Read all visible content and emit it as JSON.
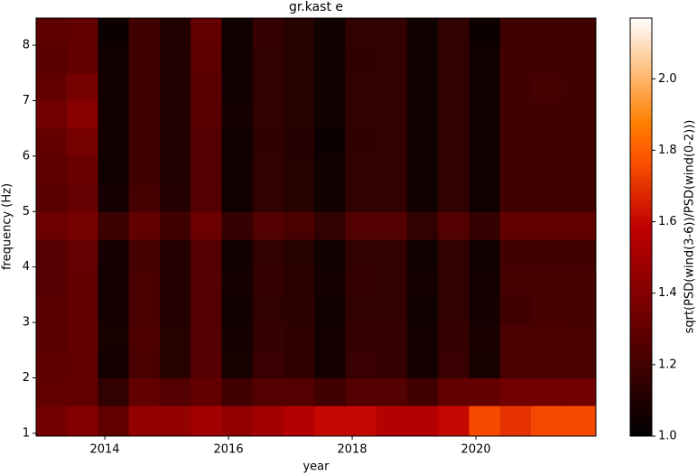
{
  "chart_data": {
    "type": "heatmap",
    "title": "gr.kast e",
    "x_label": "year",
    "y_label": "frequency (Hz)",
    "colorbar_label": "sqrt(PSD(wind(3-6))/PSD(wind(0-2)))",
    "colormap": "gist_heat",
    "clim": [
      1.0,
      2.17
    ],
    "colorbar_ticks": [
      {
        "value": 1.0,
        "label": "1.0"
      },
      {
        "value": 1.2,
        "label": "1.2"
      },
      {
        "value": 1.4,
        "label": "1.4"
      },
      {
        "value": 1.6,
        "label": "1.6"
      },
      {
        "value": 1.8,
        "label": "1.8"
      },
      {
        "value": 2.0,
        "label": "2.0"
      }
    ],
    "xlim": [
      2012.89,
      2021.94
    ],
    "xticks": [
      2014,
      2016,
      2018,
      2020
    ],
    "ylim": [
      0.95,
      8.49
    ],
    "yticks": [
      1,
      2,
      3,
      4,
      5,
      6,
      7,
      8
    ],
    "xbins": [
      2012.89,
      2013.39,
      2013.89,
      2014.39,
      2014.89,
      2015.39,
      2015.89,
      2016.39,
      2016.89,
      2017.39,
      2017.89,
      2018.39,
      2018.89,
      2019.39,
      2019.89,
      2020.39,
      2020.89,
      2021.39,
      2021.94
    ],
    "ybins": [
      0.95,
      1.5,
      2,
      2.5,
      3,
      3.5,
      4,
      4.5,
      5,
      5.5,
      6,
      6.5,
      7,
      7.5,
      8,
      8.49
    ],
    "z": [
      [
        1.35,
        1.4,
        1.3,
        1.45,
        1.45,
        1.5,
        1.45,
        1.5,
        1.55,
        1.6,
        1.6,
        1.55,
        1.55,
        1.6,
        1.75,
        1.7,
        1.75,
        1.75
      ],
      [
        1.3,
        1.3,
        1.15,
        1.3,
        1.25,
        1.3,
        1.2,
        1.25,
        1.25,
        1.2,
        1.25,
        1.25,
        1.2,
        1.3,
        1.3,
        1.35,
        1.35,
        1.35
      ],
      [
        1.28,
        1.3,
        1.06,
        1.22,
        1.12,
        1.26,
        1.07,
        1.17,
        1.14,
        1.06,
        1.17,
        1.16,
        1.06,
        1.17,
        1.07,
        1.22,
        1.22,
        1.22
      ],
      [
        1.27,
        1.3,
        1.07,
        1.24,
        1.12,
        1.26,
        1.06,
        1.16,
        1.14,
        1.06,
        1.16,
        1.16,
        1.06,
        1.16,
        1.08,
        1.22,
        1.23,
        1.22
      ],
      [
        1.27,
        1.3,
        1.06,
        1.22,
        1.11,
        1.25,
        1.05,
        1.15,
        1.13,
        1.05,
        1.15,
        1.15,
        1.05,
        1.15,
        1.06,
        1.2,
        1.21,
        1.21
      ],
      [
        1.26,
        1.3,
        1.06,
        1.22,
        1.11,
        1.25,
        1.06,
        1.16,
        1.13,
        1.06,
        1.16,
        1.15,
        1.06,
        1.15,
        1.06,
        1.21,
        1.21,
        1.21
      ],
      [
        1.26,
        1.31,
        1.06,
        1.21,
        1.11,
        1.25,
        1.05,
        1.15,
        1.12,
        1.05,
        1.15,
        1.15,
        1.05,
        1.15,
        1.05,
        1.2,
        1.2,
        1.2
      ],
      [
        1.33,
        1.36,
        1.18,
        1.3,
        1.2,
        1.33,
        1.16,
        1.25,
        1.22,
        1.15,
        1.25,
        1.25,
        1.15,
        1.25,
        1.16,
        1.3,
        1.3,
        1.3
      ],
      [
        1.27,
        1.31,
        1.06,
        1.21,
        1.11,
        1.26,
        1.05,
        1.15,
        1.12,
        1.05,
        1.15,
        1.15,
        1.05,
        1.15,
        1.05,
        1.2,
        1.2,
        1.2
      ],
      [
        1.28,
        1.32,
        1.05,
        1.2,
        1.1,
        1.25,
        1.05,
        1.15,
        1.12,
        1.05,
        1.15,
        1.15,
        1.05,
        1.15,
        1.05,
        1.2,
        1.2,
        1.2
      ],
      [
        1.3,
        1.36,
        1.05,
        1.2,
        1.1,
        1.26,
        1.05,
        1.14,
        1.11,
        1.04,
        1.14,
        1.15,
        1.05,
        1.15,
        1.05,
        1.2,
        1.2,
        1.2
      ],
      [
        1.35,
        1.42,
        1.05,
        1.2,
        1.1,
        1.27,
        1.06,
        1.15,
        1.12,
        1.05,
        1.15,
        1.15,
        1.05,
        1.15,
        1.05,
        1.2,
        1.2,
        1.2
      ],
      [
        1.3,
        1.36,
        1.05,
        1.2,
        1.1,
        1.27,
        1.05,
        1.15,
        1.12,
        1.05,
        1.15,
        1.15,
        1.05,
        1.15,
        1.05,
        1.2,
        1.21,
        1.2
      ],
      [
        1.27,
        1.3,
        1.05,
        1.2,
        1.1,
        1.28,
        1.05,
        1.15,
        1.12,
        1.05,
        1.14,
        1.15,
        1.05,
        1.15,
        1.05,
        1.2,
        1.2,
        1.2
      ],
      [
        1.28,
        1.3,
        1.04,
        1.2,
        1.1,
        1.3,
        1.05,
        1.16,
        1.12,
        1.05,
        1.15,
        1.15,
        1.05,
        1.15,
        1.04,
        1.2,
        1.2,
        1.2
      ]
    ]
  }
}
